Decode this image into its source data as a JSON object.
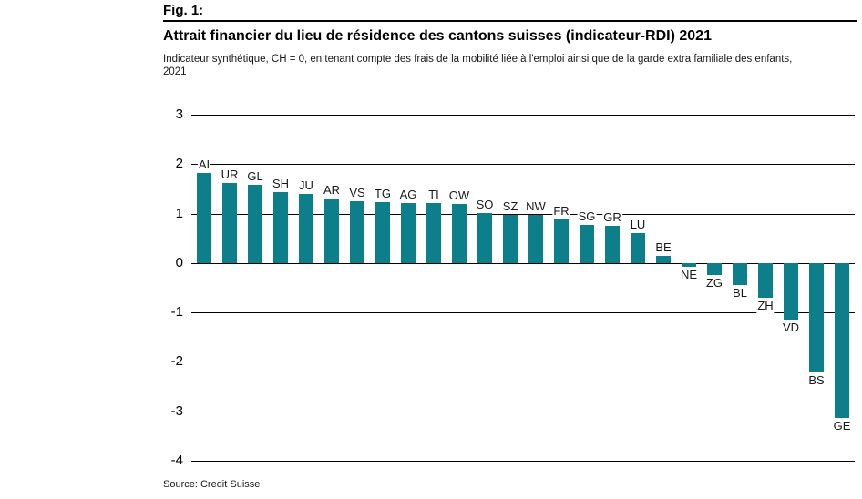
{
  "figure": {
    "fig_label": "Fig. 1:",
    "title": "Attrait financier du lieu de résidence des cantons suisses (indicateur-RDI) 2021",
    "subtitle_lines": [
      "Indicateur synthétique, CH = 0, en tenant compte des frais de la mobilité liée à l'emploi ainsi que de la garde extra familiale des enfants,",
      "2021"
    ],
    "source": "Source: Credit Suisse"
  },
  "chart_data": {
    "type": "bar",
    "title": "Attrait financier du lieu de résidence des cantons suisses (indicateur-RDI) 2021",
    "subtitle": "Indicateur synthétique, CH = 0, en tenant compte des frais de la mobilité liée à l'emploi ainsi que de la garde extra familiale des enfants, 2021",
    "categories": [
      "AI",
      "UR",
      "GL",
      "SH",
      "JU",
      "AR",
      "VS",
      "TG",
      "AG",
      "TI",
      "OW",
      "SO",
      "SZ",
      "NW",
      "FR",
      "SG",
      "GR",
      "LU",
      "BE",
      "NE",
      "ZG",
      "BL",
      "ZH",
      "VD",
      "BS",
      "GE"
    ],
    "values": [
      1.82,
      1.62,
      1.58,
      1.43,
      1.4,
      1.31,
      1.25,
      1.23,
      1.22,
      1.21,
      1.2,
      1.02,
      0.98,
      0.97,
      0.88,
      0.78,
      0.75,
      0.61,
      0.15,
      -0.08,
      -0.24,
      -0.45,
      -0.7,
      -1.14,
      -2.22,
      -3.14
    ],
    "xlabel": "",
    "ylabel": "",
    "ylim": [
      -4,
      3
    ],
    "yticks": [
      3,
      2,
      1,
      0,
      -1,
      -2,
      -3,
      -4
    ],
    "grid": true,
    "legend": "none",
    "bar_color": "#0D7F8B",
    "grid_color": "#000000",
    "label_color": "#1a1a1a",
    "source": "Source: Credit Suisse"
  }
}
